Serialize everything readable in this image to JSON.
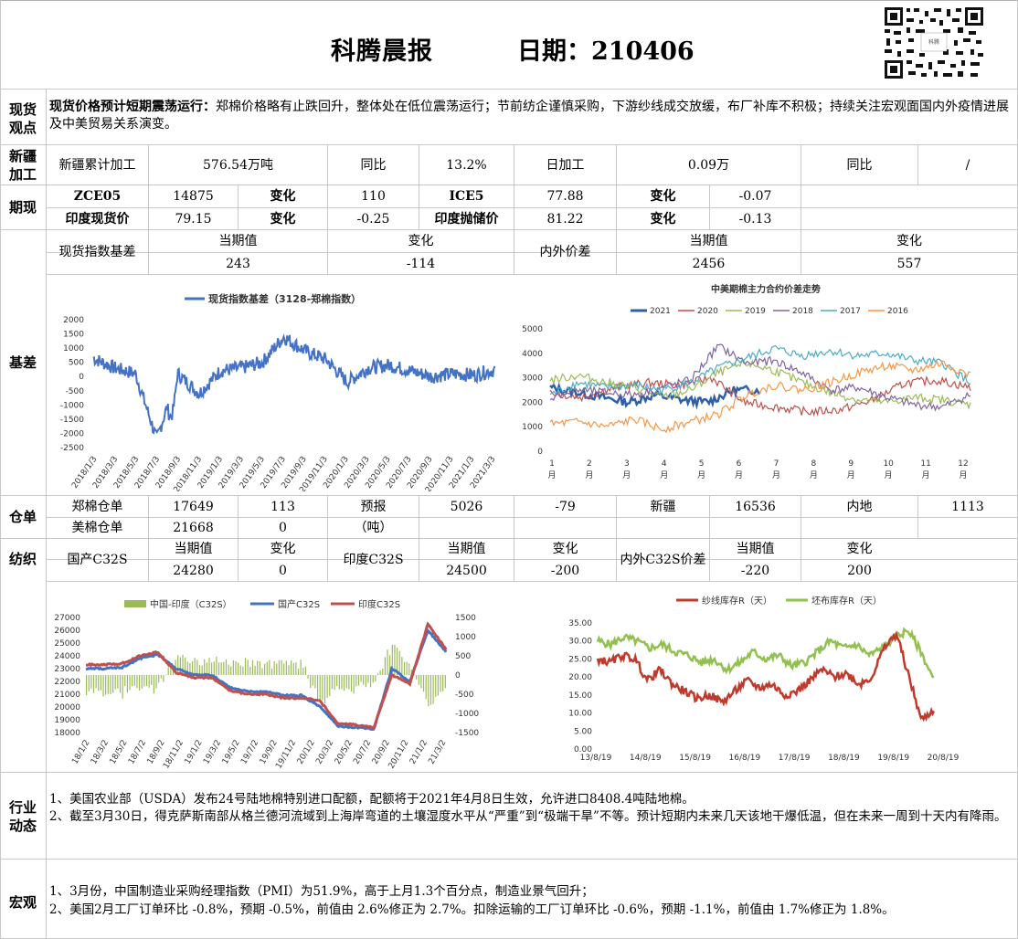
{
  "header": {
    "title": "科腾晨报",
    "date": "日期：210406"
  },
  "spot_view": {
    "label": "现货观点",
    "headline": "现货价格预计短期震荡运行：",
    "text": "郑棉价格略有止跌回升，整体处在低位震荡运行；节前纺企谨慎采购，下游纱线成交放缓，布厂补库不积极；持续关注宏观面国内外疫情进展及中美贸易关系演变。"
  },
  "xinjiang": {
    "label": "新疆加工",
    "cum_label": "新疆累计加工",
    "cum_value": "576.54万吨",
    "yoy_label": "同比",
    "yoy_value": "13.2%",
    "daily_label": "日加工",
    "daily_value": "0.09万",
    "daily_yoy_label": "同比",
    "daily_yoy_value": "/"
  },
  "futures": {
    "label": "期现",
    "zce_label": "ZCE05",
    "zce_value": "14875",
    "zce_chg_label": "变化",
    "zce_chg": "110",
    "ice_label": "ICE5",
    "ice_value": "77.88",
    "ice_chg_label": "变化",
    "ice_chg": "-0.07",
    "india_spot_label": "印度现货价",
    "india_spot_value": "79.15",
    "india_spot_chg_label": "变化",
    "india_spot_chg": "-0.25",
    "india_reserve_label": "印度抛储价",
    "india_reserve_value": "81.22",
    "india_reserve_chg_label": "变化",
    "india_reserve_chg": "-0.13"
  },
  "basis": {
    "label": "基差",
    "index_label": "现货指数基差",
    "current_label": "当期值",
    "change_label": "变化",
    "index_current": "243",
    "index_change": "-114",
    "spread_label": "内外价差",
    "spread_current_label": "当期值",
    "spread_change_label": "变化",
    "spread_current": "2456",
    "spread_change": "557"
  },
  "warehouse": {
    "label": "仓单",
    "zhengmian_label": "郑棉仓单",
    "zhengmian_value": "17649",
    "zhengmian_chg": "113",
    "forecast_label": "预报",
    "forecast_value": "5026",
    "forecast_chg": "-79",
    "xinjiang_label": "新疆",
    "xinjiang_value": "16536",
    "inland_label": "内地",
    "inland_value": "1113",
    "us_label": "美棉仓单",
    "us_value": "21668",
    "us_chg": "0",
    "unit": "（吨）"
  },
  "textile": {
    "label": "纺织",
    "domestic_label": "国产C32S",
    "current_label": "当期值",
    "change_label": "变化",
    "domestic_current": "24280",
    "domestic_change": "0",
    "india_label": "印度C32S",
    "india_current": "24500",
    "india_change": "-200",
    "spread_label": "内外C32S价差",
    "spread_current": "-220",
    "spread_change": "200"
  },
  "industry": {
    "label": "行业动态",
    "item1": "1、美国农业部（USDA）发布24号陆地棉特别进口配额，配额将于2021年4月8日生效，允许进口8408.4吨陆地棉。",
    "item2": "2、截至3月30日，得克萨斯南部从格兰德河流域到上海岸弯道的土壤湿度水平从“严重”到“极端干旱”不等。预计短期内未来几天该地干爆低温，但在未来一周到十天内有降雨。"
  },
  "macro": {
    "label": "宏观",
    "item1": "1、3月份，中国制造业采购经理指数（PMI）为51.9%，高于上月1.3个百分点，制造业景气回升；",
    "item2": "2、美国2月工厂订单环比 -0.8%，预期 -0.5%，前值由 2.6%修正为 2.7%。扣除运输的工厂订单环比 -0.6%，预期 -1.1%，前值由 1.7%修正为 1.8%。"
  },
  "chart_data": [
    {
      "type": "line",
      "title": "",
      "series": [
        {
          "name": "现货指数基差（3128-郑棉指数）",
          "color": "#4472c4"
        }
      ],
      "x": [
        "2018/1/3",
        "2018/3/3",
        "2018/5/3",
        "2018/7/3",
        "2018/9/3",
        "2018/11/3",
        "2019/1/3",
        "2019/3/3",
        "2019/5/3",
        "2019/7/3",
        "2019/9/3",
        "2019/11/3",
        "2020/1/3",
        "2020/3/3",
        "2020/5/3",
        "2020/7/3",
        "2020/9/3",
        "2020/11/3",
        "2021/1/3",
        "2021/3/3"
      ],
      "values": [
        650,
        300,
        100,
        -2200,
        100,
        -600,
        200,
        300,
        500,
        1400,
        900,
        600,
        -200,
        300,
        400,
        200,
        0,
        100,
        50,
        243
      ],
      "yticks": [
        "2000",
        "1500",
        "1000",
        "500",
        "0",
        "-500",
        "-1000",
        "-1500",
        "-2000",
        "-2500"
      ],
      "ylim": [
        -2500,
        2000
      ]
    },
    {
      "type": "line",
      "title": "中美期棉主力合约价差走势",
      "series": [
        {
          "name": "2021",
          "color": "#2e5fa8"
        },
        {
          "name": "2020",
          "color": "#c0504d"
        },
        {
          "name": "2019",
          "color": "#9bbb59"
        },
        {
          "name": "2018",
          "color": "#8064a2"
        },
        {
          "name": "2017",
          "color": "#4bacc6"
        },
        {
          "name": "2016",
          "color": "#f79646"
        }
      ],
      "categories": [
        "1月",
        "2月",
        "3月",
        "4月",
        "5月",
        "6月",
        "7月",
        "8月",
        "9月",
        "10月",
        "11月",
        "12月"
      ],
      "yticks": [
        "5000",
        "4000",
        "3000",
        "2000",
        "1000",
        "0"
      ],
      "ylim": [
        0,
        5000
      ]
    },
    {
      "type": "line",
      "title": "",
      "series": [
        {
          "name": "中国-印度（C32S）",
          "color": "#9bbb59",
          "axis": "right"
        },
        {
          "name": "国产C32S",
          "color": "#4472c4",
          "axis": "left"
        },
        {
          "name": "印度C32S",
          "color": "#c0504d",
          "axis": "left"
        }
      ],
      "x": [
        "18/1/2",
        "18/3/2",
        "18/5/2",
        "18/7/2",
        "18/9/2",
        "18/11/2",
        "19/1/2",
        "19/3/2",
        "19/5/2",
        "19/7/2",
        "19/9/2",
        "19/11/2",
        "20/1/2",
        "20/3/2",
        "20/5/2",
        "20/7/2",
        "20/9/2",
        "20/11/2",
        "21/1/2",
        "21/3/2"
      ],
      "yticks_left": [
        "27000",
        "26000",
        "25000",
        "24000",
        "23000",
        "22000",
        "21000",
        "20000",
        "19000",
        "18000"
      ],
      "yticks_right": [
        "1500",
        "1000",
        "500",
        "0",
        "-500",
        "-1000",
        "-1500"
      ],
      "ylim_left": [
        18000,
        27000
      ],
      "ylim_right": [
        -1500,
        1500
      ]
    },
    {
      "type": "line",
      "title": "",
      "series": [
        {
          "name": "纱线库存R（天）",
          "color": "#c0392b"
        },
        {
          "name": "坯布库存R（天）",
          "color": "#92c050"
        }
      ],
      "x": [
        "13/8/19",
        "14/8/19",
        "15/8/19",
        "16/8/19",
        "17/8/19",
        "18/8/19",
        "19/8/19",
        "20/8/19"
      ],
      "yticks": [
        "35.00",
        "30.00",
        "25.00",
        "20.00",
        "15.00",
        "10.00",
        "5.00",
        "0.00"
      ],
      "ylim": [
        0,
        35
      ]
    }
  ]
}
